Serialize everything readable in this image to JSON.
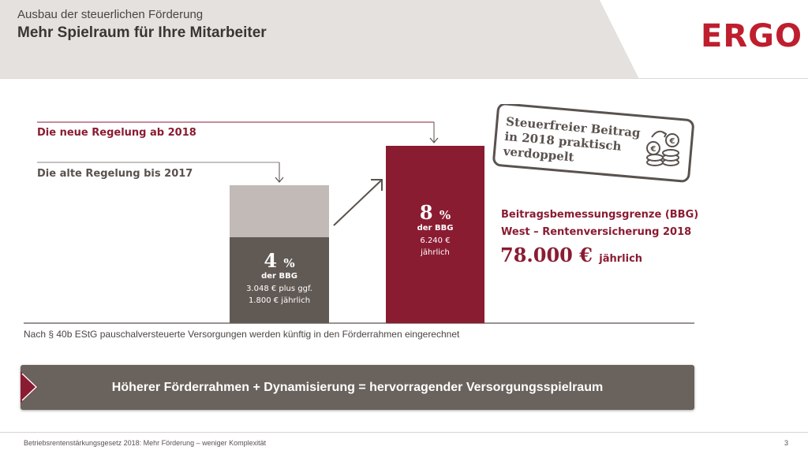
{
  "header": {
    "supertitle": "Ausbau der steuerlichen Förderung",
    "title": "Mehr Spielraum für Ihre Mitarbeiter",
    "logo": "ERGO",
    "brand_color": "#bf1e2e"
  },
  "chart": {
    "label_new": "Die neue Regelung ab 2018",
    "label_old": "Die alte Regelung bis 2017",
    "old_bar": {
      "percent": "4",
      "percent_sign": "%",
      "basis": "der BBG",
      "detail_line1": "3.048 € plus ggf.",
      "detail_line2": "1.800 € jährlich",
      "color_base": "#615954",
      "color_top": "#c2bab6"
    },
    "new_bar": {
      "percent": "8",
      "percent_sign": "%",
      "basis": "der BBG",
      "detail_line1": "6.240 €",
      "detail_line2": "jährlich",
      "color": "#8a1c32"
    },
    "bbg": {
      "line1": "Beitragsbemessungsgrenze (BBG)",
      "line2": "West – Rentenversicherung 2018",
      "value": "78.000 €",
      "unit": "jährlich"
    },
    "stamp": {
      "line1": "Steuerfreier Beitrag",
      "line2": "in 2018 praktisch",
      "line3": "verdoppelt",
      "icon": "coins-euro-icon"
    }
  },
  "footnote": "Nach § 40b EStG pauschalversteuerte Versorgungen werden künftig in den Förderrahmen eingerechnet",
  "banner": {
    "text": "Höherer Förderrahmen + Dynamisierung = hervorragender Versorgungsspielraum",
    "arrow_color": "#8a1c32",
    "background": "#6a625c"
  },
  "footer": {
    "text": "Betriebsrentenstärkungsgesetz 2018: Mehr Förderung – weniger Komplexität",
    "page_number": "3"
  }
}
